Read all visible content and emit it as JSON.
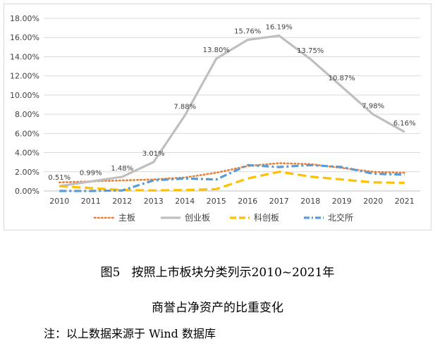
{
  "chart_data": {
    "type": "line",
    "categories": [
      "2010",
      "2011",
      "2012",
      "2013",
      "2014",
      "2015",
      "2016",
      "2017",
      "2018",
      "2019",
      "2020",
      "2021"
    ],
    "y_ticks": [
      "0.00%",
      "2.00%",
      "4.00%",
      "6.00%",
      "8.00%",
      "10.00%",
      "12.00%",
      "14.00%",
      "16.00%",
      "18.00%"
    ],
    "ylim": [
      0,
      18
    ],
    "grid": true,
    "legend_position": "bottom",
    "series": [
      {
        "name": "主板",
        "color": "#ED7D31",
        "style": "dotted",
        "values": [
          0.9,
          1.0,
          1.1,
          1.2,
          1.4,
          1.9,
          2.6,
          2.9,
          2.8,
          2.4,
          2.0,
          1.9
        ]
      },
      {
        "name": "创业板",
        "color": "#BFBFBF",
        "style": "solid",
        "values": [
          0.51,
          0.99,
          1.48,
          3.01,
          7.88,
          13.8,
          15.76,
          16.19,
          13.75,
          10.87,
          7.98,
          6.16
        ],
        "labels": [
          "0.51%",
          "0.99%",
          "1.48%",
          "3.01%",
          "7.88%",
          "13.80%",
          "15.76%",
          "16.19%",
          "13.75%",
          "10.87%",
          "7.98%",
          "6.16%"
        ]
      },
      {
        "name": "科创板",
        "color": "#FFC000",
        "style": "dashed",
        "values": [
          0.5,
          0.3,
          0.1,
          0.05,
          0.1,
          0.2,
          1.3,
          2.0,
          1.5,
          1.2,
          0.9,
          0.85
        ]
      },
      {
        "name": "北交所",
        "color": "#5B9BD5",
        "style": "dashdot",
        "values": [
          0.0,
          0.0,
          0.05,
          1.1,
          1.3,
          1.2,
          2.7,
          2.5,
          2.7,
          2.5,
          1.8,
          1.7
        ]
      }
    ]
  },
  "caption": {
    "line1": "图5   按照上市板块分类列示2010~2021年",
    "line2": "商誉占净资产的比重变化"
  },
  "note": "注：以上数据来源于 Wind 数据库"
}
